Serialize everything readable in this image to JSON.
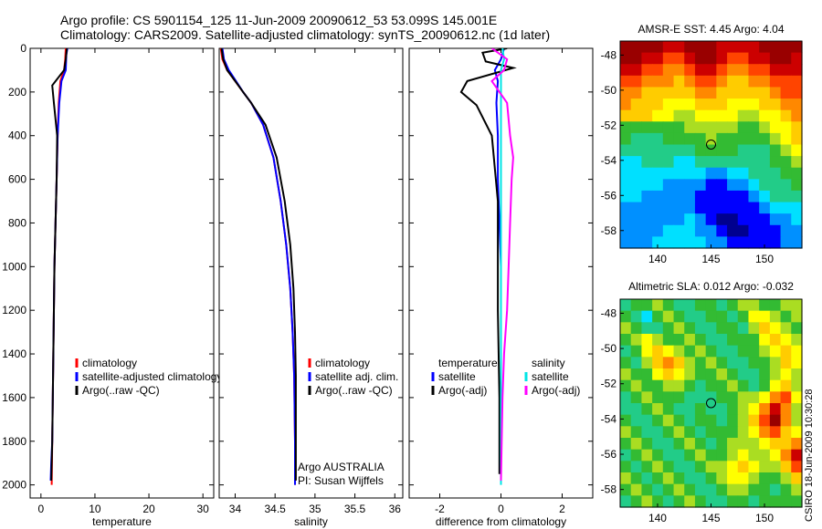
{
  "title": {
    "line1": "Argo profile: CS 5901154_125 11-Jun-2009 20090612_53 53.099S 145.001E",
    "line2": "Climatology: CARS2009. Satellite-adjusted climatology: synTS_20090612.nc (1d later)"
  },
  "side_note": "CSIRO 18-Jun-2009 10:30:28",
  "colors": {
    "climatology": "#ff0000",
    "satellite": "#0000ff",
    "argo": "#000000",
    "sal_satellite": "#00e5e5",
    "sal_argo": "#ff00ff"
  },
  "chart_data": [
    {
      "type": "line",
      "id": "temperature",
      "xlabel": "temperature",
      "ylabel": "",
      "xlim": [
        -2,
        32
      ],
      "ylim": [
        2060,
        0
      ],
      "xticks": [
        0,
        10,
        20,
        30
      ],
      "yticks": [
        0,
        200,
        400,
        600,
        800,
        1000,
        1200,
        1400,
        1600,
        1800,
        2000
      ],
      "series": [
        {
          "name": "climatology",
          "color": "#ff0000",
          "x": [
            4.6,
            4.5,
            4.3,
            3.6,
            3.3,
            3.1,
            2.9,
            2.7,
            2.5,
            2.4,
            2.3,
            2.2,
            2.1,
            2.0
          ],
          "y": [
            0,
            50,
            100,
            150,
            250,
            400,
            600,
            800,
            1000,
            1200,
            1400,
            1600,
            1800,
            2000
          ]
        },
        {
          "name": "satellite-adjusted climatology",
          "color": "#0000ff",
          "x": [
            4.9,
            4.7,
            4.6,
            3.8,
            3.4,
            3.1,
            2.9,
            2.7,
            2.5,
            2.4,
            2.3,
            2.2,
            2.1,
            1.9,
            1.8
          ],
          "y": [
            0,
            30,
            100,
            150,
            250,
            400,
            600,
            800,
            1000,
            1200,
            1400,
            1600,
            1800,
            1900,
            1980
          ]
        },
        {
          "name": "Argo(..raw -QC)",
          "color": "#000000",
          "x": [
            4.8,
            4.6,
            4.3,
            2.1,
            2.4,
            3.0,
            2.9,
            2.7,
            2.5,
            2.4,
            2.3,
            2.2,
            2.1,
            1.9
          ],
          "y": [
            0,
            50,
            100,
            170,
            250,
            400,
            600,
            800,
            1000,
            1200,
            1400,
            1600,
            1800,
            1980
          ]
        }
      ],
      "legend": {
        "placement": "lower-right",
        "entries": [
          "climatology",
          "satellite-adjusted climatology",
          "Argo(..raw -QC)"
        ]
      }
    },
    {
      "type": "line",
      "id": "salinity",
      "xlabel": "salinity",
      "ylabel": "",
      "xlim": [
        33.8,
        36.1
      ],
      "ylim": [
        2060,
        0
      ],
      "xticks": [
        34,
        34.5,
        35,
        35.5,
        36
      ],
      "xticklabels": [
        "34",
        "34.5",
        "35",
        "35.5",
        "36"
      ],
      "series": [
        {
          "name": "climatology",
          "color": "#ff0000",
          "x": [
            33.82,
            33.84,
            33.9,
            34.0,
            34.1,
            34.2,
            34.35,
            34.48,
            34.57,
            34.64,
            34.69,
            34.72,
            34.74,
            34.75,
            34.75
          ],
          "y": [
            0,
            50,
            100,
            150,
            200,
            250,
            350,
            500,
            700,
            900,
            1100,
            1300,
            1500,
            1800,
            2000
          ]
        },
        {
          "name": "satellite adj. clim.",
          "color": "#0000ff",
          "x": [
            33.84,
            33.86,
            33.92,
            34.01,
            34.1,
            34.2,
            34.35,
            34.48,
            34.57,
            34.64,
            34.69,
            34.72,
            34.74,
            34.75,
            34.75
          ],
          "y": [
            0,
            50,
            100,
            150,
            200,
            250,
            350,
            500,
            700,
            900,
            1100,
            1300,
            1500,
            1800,
            2000
          ]
        },
        {
          "name": "Argo(..raw -QC)",
          "color": "#000000",
          "x": [
            33.83,
            33.85,
            33.9,
            34.0,
            34.1,
            34.2,
            34.38,
            34.52,
            34.62,
            34.69,
            34.73,
            34.75,
            34.76,
            34.76,
            34.76
          ],
          "y": [
            0,
            50,
            100,
            150,
            200,
            250,
            350,
            500,
            700,
            900,
            1100,
            1300,
            1500,
            1800,
            1980
          ]
        }
      ],
      "legend": {
        "placement": "lower-right",
        "entries": [
          "climatology",
          "satellite adj. clim.",
          "Argo(..raw -QC)"
        ]
      },
      "annotations": [
        "Argo AUSTRALIA",
        "PI: Susan Wijffels"
      ]
    },
    {
      "type": "line",
      "id": "difference",
      "xlabel": "difference from climatology",
      "ylabel": "",
      "xlim": [
        -3,
        3
      ],
      "ylim": [
        2060,
        0
      ],
      "xticks": [
        -2,
        0,
        2
      ],
      "xticklabels": [
        "-2",
        "0",
        "2"
      ],
      "series": [
        {
          "name": "temperature satellite",
          "color": "#0000ff",
          "x": [
            0.1,
            0.0,
            -0.2,
            -0.1,
            -0.15,
            -0.1,
            -0.1,
            -0.05,
            0.0,
            0.0,
            0.0,
            0.0,
            0.0
          ],
          "y": [
            0,
            50,
            100,
            150,
            250,
            400,
            600,
            800,
            1000,
            1200,
            1400,
            1600,
            1800
          ]
        },
        {
          "name": "temperature Argo(-adj)",
          "color": "#000000",
          "x": [
            0.2,
            -0.6,
            -0.5,
            0.4,
            -1.1,
            -1.3,
            -0.8,
            -0.3,
            -0.2,
            -0.1,
            -0.1,
            -0.1,
            -0.05,
            -0.05
          ],
          "y": [
            0,
            20,
            60,
            90,
            150,
            200,
            260,
            400,
            550,
            700,
            900,
            1200,
            1600,
            1950
          ]
        },
        {
          "name": "salinity satellite",
          "color": "#00e5e5",
          "x": [
            0.05,
            0.1,
            0.0,
            0.0,
            0.0,
            0.0,
            0.0,
            0.0,
            0.0,
            0.0,
            0.0,
            0.0,
            0.0
          ],
          "y": [
            0,
            50,
            100,
            150,
            250,
            400,
            600,
            800,
            1000,
            1200,
            1400,
            1600,
            2000
          ]
        },
        {
          "name": "salinity Argo(-adj)",
          "color": "#ff00ff",
          "x": [
            -0.3,
            0.2,
            0.1,
            -0.3,
            0.2,
            0.3,
            0.4,
            0.35,
            0.3,
            0.25,
            0.2,
            0.1,
            0.05,
            0.0
          ],
          "y": [
            0,
            50,
            100,
            150,
            250,
            400,
            500,
            600,
            800,
            1000,
            1200,
            1400,
            1600,
            1980
          ]
        }
      ],
      "legend": {
        "placement": "lower-center",
        "columns": [
          {
            "header": "temperature",
            "entries": [
              "satellite",
              "Argo(-adj)"
            ]
          },
          {
            "header": "salinity",
            "entries": [
              "satellite",
              "Argo(-adj)"
            ]
          }
        ]
      }
    },
    {
      "type": "heatmap",
      "id": "sst-map",
      "title": "AMSR-E SST: 4.45 Argo: 4.04",
      "xlim": [
        136.5,
        153.5
      ],
      "ylim": [
        -59,
        -47.2
      ],
      "xticks": [
        140,
        145,
        150
      ],
      "xticklabels": [
        "140",
        "145",
        "150"
      ],
      "yticks": [
        -48,
        -50,
        -52,
        -54,
        -56,
        -58
      ],
      "yticklabels": [
        "-48",
        "-50",
        "-52",
        "-54",
        "-56",
        "-58"
      ],
      "marker": {
        "lon": 145.0,
        "lat": -53.1
      },
      "colormap": [
        "#00008f",
        "#0000ff",
        "#0090ff",
        "#00e0ff",
        "#22cc88",
        "#33bb33",
        "#aadd22",
        "#ffff00",
        "#ffcc00",
        "#ff8800",
        "#ff4400",
        "#cc0000",
        "#990000"
      ],
      "grid": [
        [
          12,
          12,
          12,
          12,
          11,
          11,
          12,
          12,
          12,
          11,
          11,
          11,
          11,
          12,
          12,
          12,
          12
        ],
        [
          12,
          12,
          11,
          11,
          10,
          10,
          11,
          12,
          12,
          11,
          10,
          10,
          11,
          11,
          12,
          12,
          11
        ],
        [
          11,
          11,
          10,
          10,
          9,
          9,
          10,
          11,
          11,
          10,
          9,
          9,
          10,
          10,
          11,
          11,
          11
        ],
        [
          10,
          10,
          9,
          9,
          9,
          8,
          9,
          10,
          10,
          9,
          8,
          8,
          9,
          9,
          10,
          10,
          10
        ],
        [
          9,
          9,
          8,
          8,
          8,
          8,
          8,
          9,
          9,
          8,
          8,
          8,
          8,
          8,
          9,
          10,
          10
        ],
        [
          9,
          8,
          8,
          8,
          7,
          7,
          7,
          8,
          8,
          8,
          7,
          7,
          7,
          8,
          8,
          9,
          9
        ],
        [
          8,
          8,
          8,
          7,
          7,
          6,
          6,
          7,
          7,
          7,
          7,
          6,
          6,
          7,
          7,
          8,
          9
        ],
        [
          5,
          5,
          5,
          5,
          5,
          5,
          6,
          6,
          6,
          6,
          6,
          5,
          5,
          6,
          7,
          7,
          8
        ],
        [
          5,
          4,
          4,
          4,
          5,
          5,
          5,
          5,
          6,
          5,
          5,
          5,
          5,
          5,
          6,
          7,
          8
        ],
        [
          4,
          4,
          4,
          4,
          4,
          4,
          4,
          5,
          5,
          5,
          5,
          4,
          4,
          4,
          5,
          6,
          7
        ],
        [
          3,
          3,
          4,
          4,
          4,
          3,
          3,
          4,
          4,
          4,
          4,
          4,
          4,
          4,
          5,
          5,
          6
        ],
        [
          3,
          3,
          3,
          3,
          3,
          3,
          3,
          3,
          2,
          2,
          3,
          3,
          4,
          4,
          4,
          5,
          5
        ],
        [
          3,
          3,
          3,
          3,
          2,
          2,
          2,
          2,
          1,
          1,
          2,
          2,
          3,
          4,
          4,
          4,
          5
        ],
        [
          3,
          3,
          2,
          2,
          2,
          2,
          2,
          1,
          1,
          1,
          1,
          1,
          2,
          3,
          4,
          4,
          4
        ],
        [
          2,
          2,
          2,
          2,
          2,
          2,
          2,
          1,
          1,
          1,
          1,
          1,
          1,
          2,
          3,
          3,
          3
        ],
        [
          2,
          2,
          2,
          2,
          2,
          2,
          3,
          2,
          1,
          0,
          0,
          1,
          1,
          1,
          2,
          2,
          3
        ],
        [
          2,
          2,
          2,
          2,
          3,
          3,
          3,
          2,
          2,
          1,
          0,
          0,
          1,
          1,
          1,
          2,
          2
        ],
        [
          2,
          2,
          2,
          3,
          3,
          3,
          3,
          3,
          2,
          2,
          1,
          1,
          1,
          1,
          1,
          2,
          2
        ]
      ]
    },
    {
      "type": "heatmap",
      "id": "sla-map",
      "title": "Altimetric SLA: 0.012 Argo: -0.032",
      "xlim": [
        136.5,
        153.5
      ],
      "ylim": [
        -59,
        -47.2
      ],
      "xticks": [
        140,
        145,
        150
      ],
      "xticklabels": [
        "140",
        "145",
        "150"
      ],
      "yticks": [
        -48,
        -50,
        -52,
        -54,
        -56,
        -58
      ],
      "yticklabels": [
        "-48",
        "-50",
        "-52",
        "-54",
        "-56",
        "-58"
      ],
      "marker": {
        "lon": 145.0,
        "lat": -53.1
      },
      "colormap": [
        "#00008f",
        "#0000ff",
        "#0090ff",
        "#00e0ff",
        "#22cc88",
        "#33bb33",
        "#aadd22",
        "#ffff00",
        "#ffcc00",
        "#ff8800",
        "#ff4400",
        "#cc0000",
        "#990000"
      ],
      "grid": [
        [
          4,
          5,
          5,
          6,
          5,
          4,
          4,
          5,
          5,
          4,
          5,
          6,
          6,
          5,
          5,
          6,
          6
        ],
        [
          5,
          4,
          3,
          5,
          6,
          5,
          4,
          4,
          5,
          5,
          4,
          5,
          7,
          7,
          6,
          5,
          6
        ],
        [
          6,
          5,
          4,
          4,
          5,
          6,
          5,
          4,
          4,
          5,
          5,
          4,
          6,
          8,
          7,
          6,
          5
        ],
        [
          5,
          6,
          7,
          6,
          5,
          5,
          6,
          5,
          4,
          4,
          5,
          5,
          5,
          7,
          8,
          7,
          6
        ],
        [
          4,
          5,
          7,
          8,
          7,
          6,
          5,
          6,
          5,
          4,
          4,
          5,
          5,
          6,
          7,
          8,
          7
        ],
        [
          5,
          4,
          6,
          8,
          9,
          8,
          6,
          5,
          6,
          5,
          4,
          4,
          5,
          5,
          6,
          8,
          7
        ],
        [
          6,
          5,
          5,
          7,
          8,
          7,
          6,
          5,
          5,
          6,
          5,
          4,
          4,
          5,
          6,
          7,
          6
        ],
        [
          5,
          6,
          5,
          5,
          6,
          6,
          5,
          4,
          5,
          5,
          6,
          5,
          4,
          5,
          7,
          8,
          6
        ],
        [
          4,
          5,
          6,
          5,
          5,
          5,
          4,
          4,
          4,
          5,
          5,
          6,
          6,
          7,
          9,
          10,
          7
        ],
        [
          4,
          4,
          5,
          6,
          5,
          4,
          4,
          5,
          4,
          4,
          5,
          6,
          7,
          9,
          11,
          9,
          6
        ],
        [
          5,
          4,
          4,
          5,
          6,
          5,
          4,
          5,
          5,
          4,
          5,
          6,
          8,
          10,
          12,
          9,
          6
        ],
        [
          6,
          5,
          4,
          4,
          5,
          6,
          5,
          4,
          5,
          5,
          5,
          6,
          7,
          9,
          10,
          8,
          7
        ],
        [
          5,
          6,
          5,
          4,
          4,
          5,
          6,
          5,
          4,
          5,
          6,
          6,
          6,
          7,
          8,
          8,
          9
        ],
        [
          4,
          5,
          6,
          5,
          4,
          4,
          5,
          6,
          5,
          5,
          6,
          7,
          6,
          6,
          7,
          9,
          11
        ],
        [
          5,
          4,
          5,
          6,
          5,
          4,
          4,
          5,
          6,
          6,
          7,
          8,
          7,
          6,
          6,
          8,
          10
        ],
        [
          6,
          5,
          4,
          5,
          6,
          5,
          4,
          4,
          5,
          6,
          7,
          7,
          6,
          5,
          5,
          6,
          8
        ],
        [
          5,
          6,
          5,
          4,
          5,
          6,
          5,
          4,
          4,
          5,
          6,
          6,
          5,
          5,
          4,
          5,
          6
        ],
        [
          4,
          5,
          6,
          5,
          4,
          5,
          6,
          5,
          4,
          4,
          5,
          5,
          4,
          5,
          5,
          5,
          5
        ]
      ]
    }
  ]
}
